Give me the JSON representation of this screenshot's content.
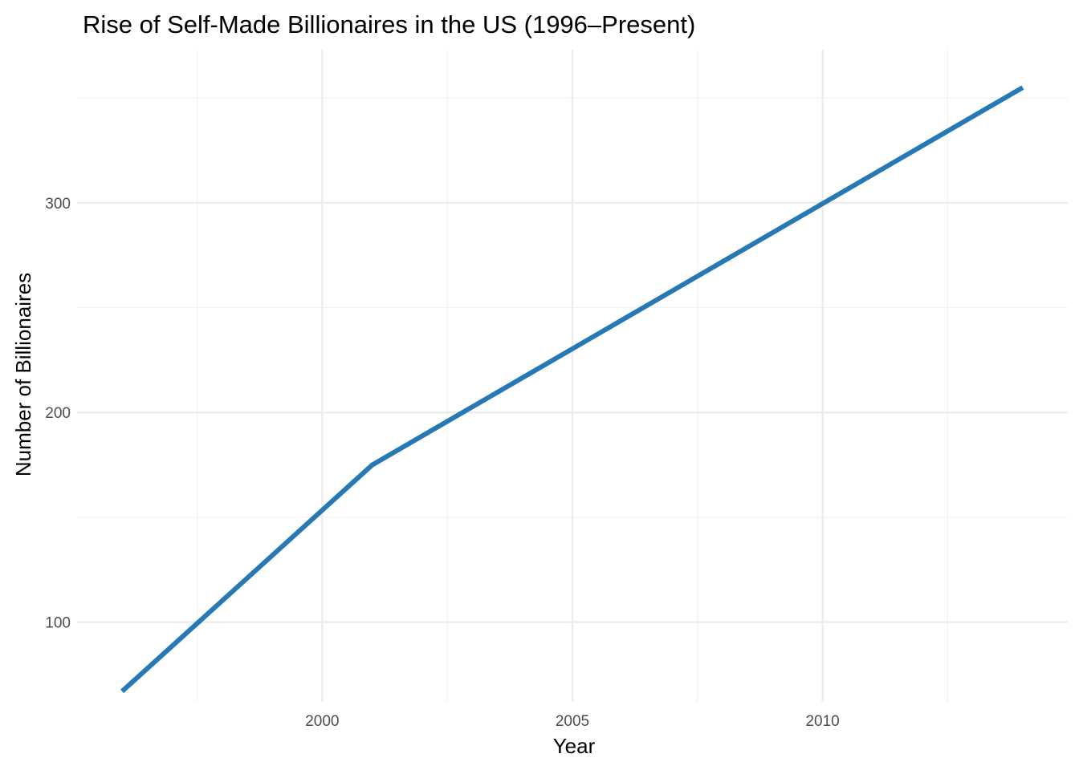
{
  "chart_data": {
    "type": "line",
    "title": "Rise of Self-Made Billionaires in the US (1996–Present)",
    "xlabel": "Year",
    "ylabel": "Number of Billionaires",
    "xlim": [
      1995.1,
      2014.9
    ],
    "ylim": [
      62,
      373
    ],
    "x_ticks": [
      2000,
      2005,
      2010
    ],
    "x_minor_ticks": [
      1997.5,
      2002.5,
      2007.5,
      2012.5
    ],
    "y_ticks": [
      100,
      200,
      300
    ],
    "y_minor_ticks": [
      150,
      250,
      350
    ],
    "grid": true,
    "series": [
      {
        "color": "#2679b4",
        "x": [
          1996,
          2001,
          2014
        ],
        "y": [
          67,
          175,
          355
        ]
      }
    ]
  }
}
